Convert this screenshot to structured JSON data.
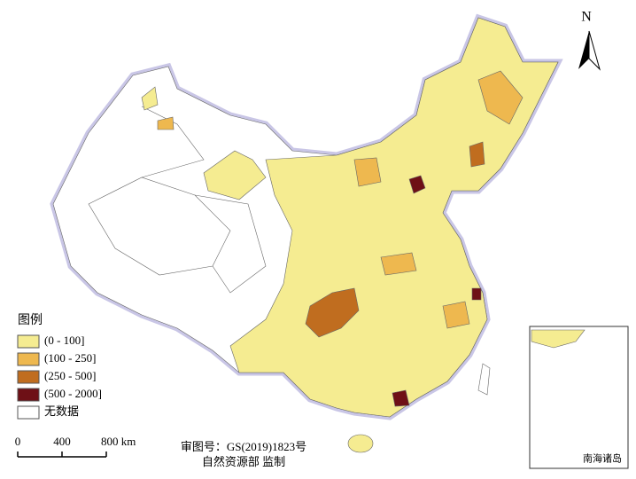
{
  "legend": {
    "title": "图例",
    "items": [
      {
        "label": "(0 - 100]",
        "color": "#f5ec91"
      },
      {
        "label": "(100 - 250]",
        "color": "#eeb84f"
      },
      {
        "label": "(250 - 500]",
        "color": "#c06d1f"
      },
      {
        "label": "(500 - 2000]",
        "color": "#6e1016"
      },
      {
        "label": "无数据",
        "color": "#ffffff"
      }
    ]
  },
  "scale_bar": {
    "ticks": [
      0,
      400,
      {
        "value": 800,
        "label": "800 km"
      }
    ]
  },
  "north": "N",
  "approval": "审图号：GS(2019)1823号",
  "publisher": "自然资源部 监制",
  "inset_label": "南海诸岛"
}
